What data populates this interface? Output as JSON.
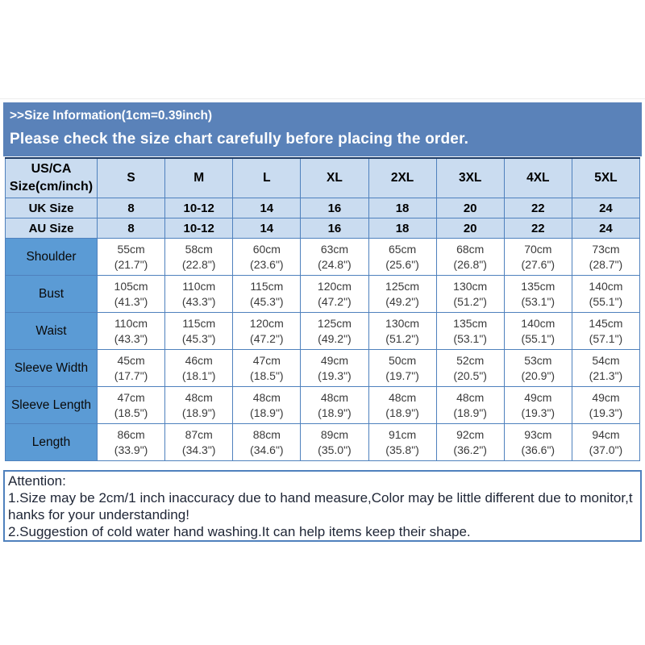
{
  "colors": {
    "banner_bg": "#5a82b9",
    "banner_text": "#ffffff",
    "header_cell_bg": "#cadcf0",
    "label_cell_bg": "#5b9bd5",
    "cell_border": "#4f81bd",
    "table_top_border": "#1b3a64",
    "data_text": "#3a3a3a",
    "attention_text": "#202737"
  },
  "banner": {
    "line1": ">>Size Information(1cm=0.39inch)",
    "line2": "Please check the size chart carefully before placing the order."
  },
  "size_table": {
    "corner_header": [
      "US/CA",
      "Size(cm/inch)"
    ],
    "size_headers": [
      "S",
      "M",
      "L",
      "XL",
      "2XL",
      "3XL",
      "4XL",
      "5XL"
    ],
    "region_rows": [
      {
        "label": "UK Size",
        "values": [
          "8",
          "10-12",
          "14",
          "16",
          "18",
          "20",
          "22",
          "24"
        ]
      },
      {
        "label": "AU Size",
        "values": [
          "8",
          "10-12",
          "14",
          "16",
          "18",
          "20",
          "22",
          "24"
        ]
      }
    ],
    "measurement_rows": [
      {
        "label": "Shoulder",
        "cm": [
          "55cm",
          "58cm",
          "60cm",
          "63cm",
          "65cm",
          "68cm",
          "70cm",
          "73cm"
        ],
        "inch": [
          "(21.7\")",
          "(22.8\")",
          "(23.6\")",
          "(24.8\")",
          "(25.6\")",
          "(26.8\")",
          "(27.6\")",
          "(28.7\")"
        ]
      },
      {
        "label": "Bust",
        "cm": [
          "105cm",
          "110cm",
          "115cm",
          "120cm",
          "125cm",
          "130cm",
          "135cm",
          "140cm"
        ],
        "inch": [
          "(41.3\")",
          "(43.3\")",
          "(45.3\")",
          "(47.2\")",
          "(49.2\")",
          "(51.2\")",
          "(53.1\")",
          "(55.1\")"
        ]
      },
      {
        "label": "Waist",
        "cm": [
          "110cm",
          "115cm",
          "120cm",
          "125cm",
          "130cm",
          "135cm",
          "140cm",
          "145cm"
        ],
        "inch": [
          "(43.3\")",
          "(45.3\")",
          "(47.2\")",
          "(49.2\")",
          "(51.2\")",
          "(53.1\")",
          "(55.1\")",
          "(57.1\")"
        ]
      },
      {
        "label": "Sleeve Width",
        "cm": [
          "45cm",
          "46cm",
          "47cm",
          "49cm",
          "50cm",
          "52cm",
          "53cm",
          "54cm"
        ],
        "inch": [
          "(17.7\")",
          "(18.1\")",
          "(18.5\")",
          "(19.3\")",
          "(19.7\")",
          "(20.5\")",
          "(20.9\")",
          "(21.3\")"
        ]
      },
      {
        "label": "Sleeve Length",
        "cm": [
          "47cm",
          "48cm",
          "48cm",
          "48cm",
          "48cm",
          "48cm",
          "49cm",
          "49cm"
        ],
        "inch": [
          "(18.5\")",
          "(18.9\")",
          "(18.9\")",
          "(18.9\")",
          "(18.9\")",
          "(18.9\")",
          "(19.3\")",
          "(19.3\")"
        ]
      },
      {
        "label": "Length",
        "cm": [
          "86cm",
          "87cm",
          "88cm",
          "89cm",
          "91cm",
          "92cm",
          "93cm",
          "94cm"
        ],
        "inch": [
          "(33.9\")",
          "(34.3\")",
          "(34.6\")",
          "(35.0\")",
          "(35.8\")",
          "(36.2\")",
          "(36.6\")",
          "(37.0\")"
        ]
      }
    ]
  },
  "attention": {
    "title": "Attention:",
    "lines": [
      "1.Size may be 2cm/1 inch inaccuracy due to hand measure,Color may be little different due to monitor,t",
      "hanks for your understanding!",
      "2.Suggestion of cold water hand washing.It can help items keep their shape."
    ]
  }
}
